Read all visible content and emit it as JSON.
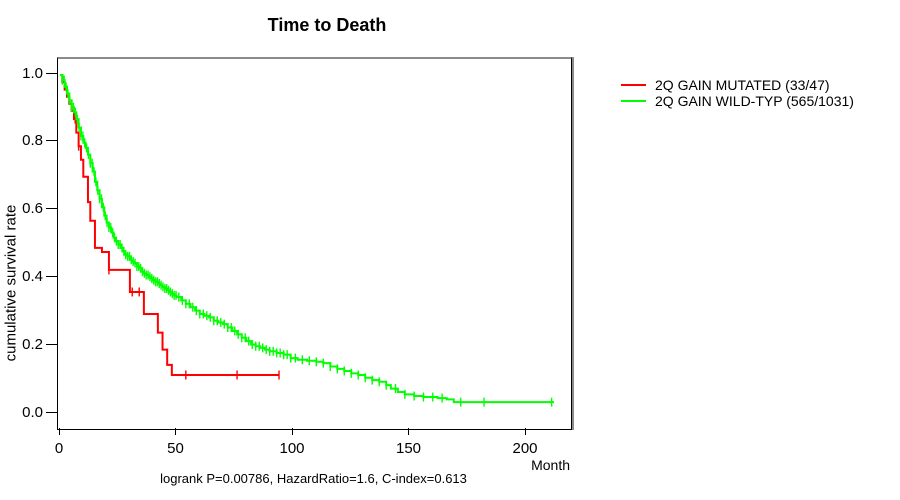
{
  "chart_data": {
    "type": "line",
    "subtype": "kaplan-meier-step",
    "title": "Time to Death",
    "xlabel": "Month",
    "ylabel": "cumulative survival rate",
    "annotation": "logrank P=0.00786, HazardRatio=1.6, C-index=0.613",
    "xlim": [
      0,
      220
    ],
    "ylim": [
      0.0,
      1.0
    ],
    "x_ticks": [
      0,
      50,
      100,
      150,
      200
    ],
    "y_ticks": [
      0.0,
      0.2,
      0.4,
      0.6,
      0.8,
      1.0
    ],
    "grid": false,
    "legend_position": "outside-top-right",
    "series": [
      {
        "name": "2Q GAIN MUTATED (33/47)",
        "color": "#ff0000",
        "events": 33,
        "total": 47,
        "points": [
          [
            0,
            1.0
          ],
          [
            1,
            0.979
          ],
          [
            2,
            0.957
          ],
          [
            3,
            0.936
          ],
          [
            4,
            0.915
          ],
          [
            5,
            0.894
          ],
          [
            6,
            0.87
          ],
          [
            7,
            0.83
          ],
          [
            8,
            0.79
          ],
          [
            9,
            0.75
          ],
          [
            10,
            0.7
          ],
          [
            12,
            0.625
          ],
          [
            13,
            0.57
          ],
          [
            15,
            0.49
          ],
          [
            18,
            0.478
          ],
          [
            21,
            0.425
          ],
          [
            30,
            0.36
          ],
          [
            36,
            0.295
          ],
          [
            42,
            0.24
          ],
          [
            44,
            0.19
          ],
          [
            46,
            0.145
          ],
          [
            48,
            0.115
          ],
          [
            94,
            0.115
          ]
        ],
        "censor_months": [
          6.5,
          8,
          21,
          31,
          34,
          54,
          76,
          94
        ]
      },
      {
        "name": "2Q GAIN WILD-TYP (565/1031)",
        "color": "#00ff00",
        "events": 565,
        "total": 1031,
        "points": [
          [
            0,
            1.0
          ],
          [
            1,
            0.985
          ],
          [
            2,
            0.965
          ],
          [
            3,
            0.945
          ],
          [
            4,
            0.925
          ],
          [
            5,
            0.905
          ],
          [
            6,
            0.89
          ],
          [
            7,
            0.87
          ],
          [
            8,
            0.845
          ],
          [
            9,
            0.82
          ],
          [
            10,
            0.8
          ],
          [
            11,
            0.785
          ],
          [
            12,
            0.765
          ],
          [
            13,
            0.74
          ],
          [
            14,
            0.715
          ],
          [
            15,
            0.685
          ],
          [
            16,
            0.66
          ],
          [
            17,
            0.635
          ],
          [
            18,
            0.61
          ],
          [
            19,
            0.585
          ],
          [
            20,
            0.565
          ],
          [
            21,
            0.55
          ],
          [
            22,
            0.535
          ],
          [
            23,
            0.52
          ],
          [
            24,
            0.51
          ],
          [
            25,
            0.5
          ],
          [
            26,
            0.49
          ],
          [
            27,
            0.48
          ],
          [
            28,
            0.47
          ],
          [
            29,
            0.465
          ],
          [
            30,
            0.455
          ],
          [
            31,
            0.45
          ],
          [
            32,
            0.445
          ],
          [
            33,
            0.435
          ],
          [
            34,
            0.43
          ],
          [
            35,
            0.42
          ],
          [
            36,
            0.415
          ],
          [
            37,
            0.41
          ],
          [
            38,
            0.405
          ],
          [
            39,
            0.4
          ],
          [
            40,
            0.395
          ],
          [
            41,
            0.39
          ],
          [
            42,
            0.385
          ],
          [
            43,
            0.38
          ],
          [
            44,
            0.375
          ],
          [
            45,
            0.37
          ],
          [
            46,
            0.365
          ],
          [
            47,
            0.36
          ],
          [
            48,
            0.355
          ],
          [
            49,
            0.35
          ],
          [
            50,
            0.345
          ],
          [
            52,
            0.335
          ],
          [
            54,
            0.325
          ],
          [
            56,
            0.315
          ],
          [
            58,
            0.305
          ],
          [
            60,
            0.295
          ],
          [
            62,
            0.29
          ],
          [
            64,
            0.285
          ],
          [
            66,
            0.275
          ],
          [
            68,
            0.27
          ],
          [
            70,
            0.265
          ],
          [
            72,
            0.255
          ],
          [
            74,
            0.245
          ],
          [
            76,
            0.235
          ],
          [
            78,
            0.225
          ],
          [
            80,
            0.215
          ],
          [
            82,
            0.205
          ],
          [
            84,
            0.2
          ],
          [
            86,
            0.195
          ],
          [
            88,
            0.19
          ],
          [
            90,
            0.185
          ],
          [
            93,
            0.18
          ],
          [
            96,
            0.175
          ],
          [
            99,
            0.165
          ],
          [
            102,
            0.16
          ],
          [
            106,
            0.157
          ],
          [
            110,
            0.154
          ],
          [
            113,
            0.15
          ],
          [
            116,
            0.14
          ],
          [
            119,
            0.133
          ],
          [
            122,
            0.127
          ],
          [
            125,
            0.12
          ],
          [
            128,
            0.115
          ],
          [
            131,
            0.107
          ],
          [
            134,
            0.1
          ],
          [
            137,
            0.095
          ],
          [
            140,
            0.085
          ],
          [
            142,
            0.075
          ],
          [
            145,
            0.065
          ],
          [
            148,
            0.058
          ],
          [
            152,
            0.053
          ],
          [
            156,
            0.05
          ],
          [
            162,
            0.047
          ],
          [
            166,
            0.043
          ],
          [
            169,
            0.035
          ],
          [
            212,
            0.035
          ]
        ],
        "censor_months": [
          1,
          1.8,
          2.6,
          3.4,
          4.2,
          5,
          5.8,
          6.6,
          7.4,
          8.2,
          9,
          9.8,
          10.6,
          11.4,
          12.2,
          13,
          13.8,
          14.6,
          15.4,
          16.2,
          17,
          17.8,
          18.6,
          19.4,
          20.2,
          21,
          21.8,
          22.6,
          23.4,
          24.2,
          25,
          25.8,
          26.6,
          27.4,
          28.2,
          29,
          29.8,
          30.6,
          31.4,
          32.2,
          33,
          33.8,
          34.6,
          35.4,
          36.2,
          37,
          37.8,
          38.6,
          39.4,
          40.2,
          41,
          41.8,
          42.6,
          43.4,
          44.2,
          45,
          45.8,
          46.6,
          47.4,
          48.2,
          49,
          49.8,
          51,
          52.5,
          54,
          55.5,
          57,
          58.5,
          60,
          61.5,
          63,
          64.5,
          66,
          67.5,
          69,
          70.5,
          72,
          73.5,
          75,
          76.5,
          78,
          79.5,
          81,
          82.5,
          84,
          85.5,
          87,
          88.5,
          90,
          91.5,
          93,
          94.5,
          96,
          97.5,
          99,
          101,
          104,
          107,
          110,
          113,
          116,
          119,
          122,
          125,
          128,
          131,
          134,
          137,
          140,
          144,
          148,
          152,
          156,
          160,
          164,
          172,
          182,
          211
        ]
      }
    ]
  }
}
